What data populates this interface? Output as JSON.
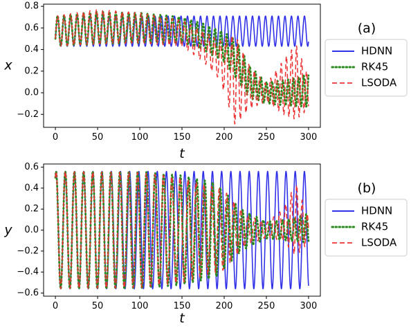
{
  "chart_data": [
    {
      "type": "line",
      "panel_label": "(a)",
      "xlabel": "t",
      "ylabel": "x",
      "xlim": [
        -14,
        314
      ],
      "ylim": [
        -0.32,
        0.82
      ],
      "xticks": [
        0,
        50,
        100,
        150,
        200,
        250,
        300
      ],
      "xtick_labels": [
        "0",
        "50",
        "100",
        "150",
        "200",
        "250",
        "300"
      ],
      "yticks": [
        -0.2,
        0.0,
        0.2,
        0.4,
        0.6,
        0.8
      ],
      "ytick_labels": [
        "−0.2",
        "0.0",
        "0.2",
        "0.4",
        "0.6",
        "0.8"
      ],
      "legend_position": "right-outside",
      "grid": false,
      "series": [
        {
          "name": "HDNN",
          "style": "solid",
          "color": "#3030e8",
          "model": "sinusoid",
          "t_range": [
            0,
            300
          ],
          "center": 0.57,
          "amplitude": 0.14,
          "period": 7.7,
          "phase_start": "low",
          "y_start": 0.5
        },
        {
          "name": "RK45",
          "style": "dotted",
          "color": "#2a8a1e",
          "model": "drifting_oscillation",
          "t_range": [
            0,
            300
          ],
          "period_start": 7.7,
          "period_end": 6.0,
          "envelope": [
            {
              "t": 0,
              "center": 0.57,
              "amp": 0.14
            },
            {
              "t": 50,
              "center": 0.6,
              "amp": 0.15
            },
            {
              "t": 100,
              "center": 0.6,
              "amp": 0.14
            },
            {
              "t": 150,
              "center": 0.58,
              "amp": 0.12
            },
            {
              "t": 175,
              "center": 0.52,
              "amp": 0.12
            },
            {
              "t": 200,
              "center": 0.42,
              "amp": 0.14
            },
            {
              "t": 215,
              "center": 0.3,
              "amp": 0.18
            },
            {
              "t": 230,
              "center": 0.1,
              "amp": 0.15
            },
            {
              "t": 250,
              "center": 0.0,
              "amp": 0.1
            },
            {
              "t": 275,
              "center": 0.0,
              "amp": 0.12
            },
            {
              "t": 300,
              "center": 0.02,
              "amp": 0.15
            }
          ]
        },
        {
          "name": "LSODA",
          "style": "dashed",
          "color": "#ee3030",
          "model": "drifting_oscillation",
          "t_range": [
            0,
            300
          ],
          "period_start": 7.7,
          "period_end": 5.8,
          "envelope": [
            {
              "t": 0,
              "center": 0.57,
              "amp": 0.14
            },
            {
              "t": 50,
              "center": 0.61,
              "amp": 0.16
            },
            {
              "t": 100,
              "center": 0.6,
              "amp": 0.14
            },
            {
              "t": 150,
              "center": 0.55,
              "amp": 0.12
            },
            {
              "t": 175,
              "center": 0.43,
              "amp": 0.14
            },
            {
              "t": 195,
              "center": 0.3,
              "amp": 0.18
            },
            {
              "t": 213,
              "center": 0.12,
              "amp": 0.42
            },
            {
              "t": 230,
              "center": 0.05,
              "amp": 0.2
            },
            {
              "t": 250,
              "center": 0.0,
              "amp": 0.08
            },
            {
              "t": 270,
              "center": 0.05,
              "amp": 0.25
            },
            {
              "t": 285,
              "center": 0.1,
              "amp": 0.35
            },
            {
              "t": 300,
              "center": 0.0,
              "amp": 0.15
            }
          ]
        }
      ]
    },
    {
      "type": "line",
      "panel_label": "(b)",
      "xlabel": "t",
      "ylabel": "y",
      "xlim": [
        -14,
        314
      ],
      "ylim": [
        -0.63,
        0.63
      ],
      "xticks": [
        0,
        50,
        100,
        150,
        200,
        250,
        300
      ],
      "xtick_labels": [
        "0",
        "50",
        "100",
        "150",
        "200",
        "250",
        "300"
      ],
      "yticks": [
        -0.6,
        -0.4,
        -0.2,
        0.0,
        0.2,
        0.4,
        0.6
      ],
      "ytick_labels": [
        "−0.6",
        "−0.4",
        "−0.2",
        "0.0",
        "0.2",
        "0.4",
        "0.6"
      ],
      "legend_position": "right-outside",
      "grid": false,
      "series": [
        {
          "name": "HDNN",
          "style": "solid",
          "color": "#3030e8",
          "model": "sinusoid",
          "t_range": [
            0,
            300
          ],
          "center": 0.0,
          "amplitude": 0.56,
          "period": 10.9,
          "phase_start": "mid-rising",
          "y_start": 0.5
        },
        {
          "name": "RK45",
          "style": "dotted",
          "color": "#2a8a1e",
          "model": "drifting_oscillation",
          "t_range": [
            0,
            300
          ],
          "period_start": 10.9,
          "period_end": 6.5,
          "envelope": [
            {
              "t": 0,
              "center": 0.0,
              "amp": 0.56
            },
            {
              "t": 100,
              "center": 0.0,
              "amp": 0.56
            },
            {
              "t": 150,
              "center": 0.0,
              "amp": 0.52
            },
            {
              "t": 190,
              "center": 0.0,
              "amp": 0.45
            },
            {
              "t": 220,
              "center": 0.0,
              "amp": 0.2
            },
            {
              "t": 250,
              "center": 0.0,
              "amp": 0.08
            },
            {
              "t": 275,
              "center": 0.0,
              "amp": 0.1
            },
            {
              "t": 300,
              "center": 0.02,
              "amp": 0.14
            }
          ]
        },
        {
          "name": "LSODA",
          "style": "dashed",
          "color": "#ee3030",
          "model": "drifting_oscillation",
          "t_range": [
            0,
            300
          ],
          "period_start": 10.9,
          "period_end": 6.0,
          "envelope": [
            {
              "t": 0,
              "center": 0.0,
              "amp": 0.56
            },
            {
              "t": 100,
              "center": 0.0,
              "amp": 0.55
            },
            {
              "t": 150,
              "center": 0.0,
              "amp": 0.5
            },
            {
              "t": 200,
              "center": 0.0,
              "amp": 0.38
            },
            {
              "t": 225,
              "center": 0.0,
              "amp": 0.15
            },
            {
              "t": 250,
              "center": 0.0,
              "amp": 0.07
            },
            {
              "t": 270,
              "center": 0.05,
              "amp": 0.15
            },
            {
              "t": 285,
              "center": 0.1,
              "amp": 0.35
            },
            {
              "t": 300,
              "center": 0.0,
              "amp": 0.12
            }
          ]
        }
      ]
    }
  ]
}
